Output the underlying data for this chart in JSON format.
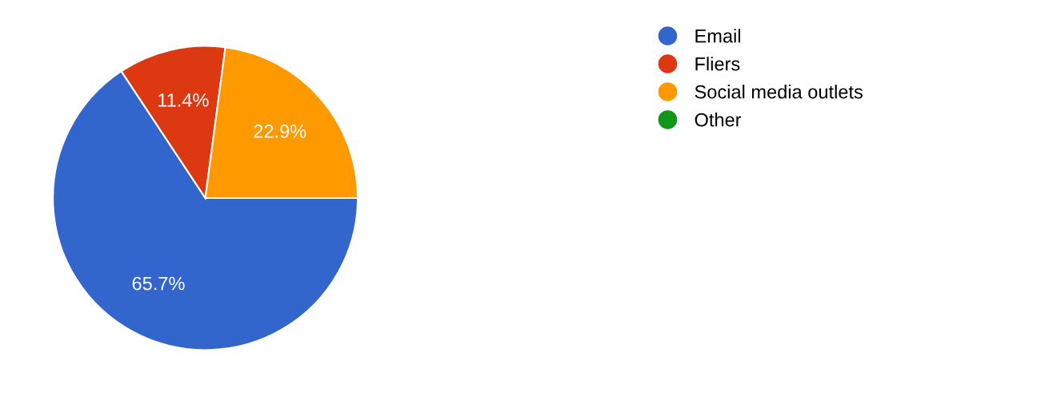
{
  "chart_data": {
    "type": "pie",
    "categories": [
      "Email",
      "Fliers",
      "Social media outlets",
      "Other"
    ],
    "values": [
      65.7,
      11.4,
      22.9,
      0
    ],
    "colors": [
      "#3366cc",
      "#dc3912",
      "#ff9900",
      "#109618"
    ],
    "value_labels": [
      "65.7%",
      "11.4%",
      "22.9%",
      null
    ],
    "legend": "top right"
  }
}
